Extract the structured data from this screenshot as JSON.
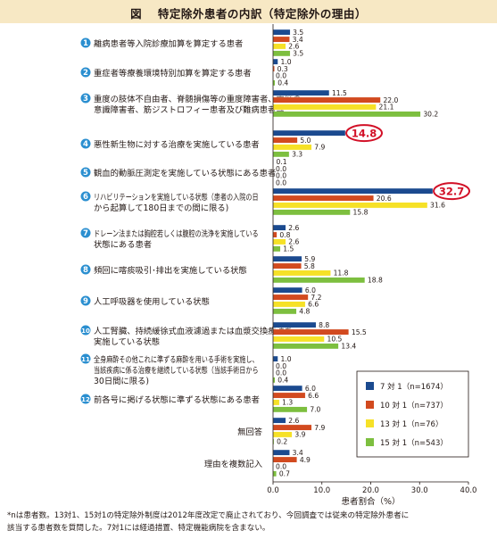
{
  "figure": {
    "title": "図　 特定除外患者の内訳（特定除外の理由）",
    "footnote_lines": [
      "*nは患者数。13対1、15対1の特定除外制度は2012年度改定で廃止されており、今回調査では従来の特定除外患者に",
      "該当する患者数を質問した。7対1には経過措置、特定機能病院を含まない。"
    ]
  },
  "chart_data": {
    "type": "bar",
    "orientation": "horizontal",
    "title": "",
    "xlabel": "患者割合（%）",
    "ylabel": "",
    "xlim": [
      0,
      40
    ],
    "xticks": [
      "0.0",
      "10.0",
      "20.0",
      "30.0",
      "40.0"
    ],
    "grid": false,
    "legend_position": "right-lower",
    "categories": [
      {
        "num": "1",
        "lines": [
          "離病患者等入院診療加算を算定する患者"
        ]
      },
      {
        "num": "2",
        "lines": [
          "重症者等療養環境特別加算を算定する患者"
        ]
      },
      {
        "num": "3",
        "lines": [
          "重度の肢体不自由者、脊髄損傷等の重度障害者、重度の",
          "意識障害者、筋ジストロフィー患者及び難病患者等"
        ]
      },
      {
        "num": "4",
        "lines": [
          "悪性新生物に対する治療を実施している患者"
        ]
      },
      {
        "num": "5",
        "lines": [
          "観血的動脈圧測定を実施している状態にある患者"
        ]
      },
      {
        "num": "6",
        "lines": [
          "リハビリテーションを実施している状態（患者の入院の日",
          "から起算して180日までの間に限る)"
        ]
      },
      {
        "num": "7",
        "lines": [
          "ドレーン法または胸腔若しくは腹腔の洗浄を実施している",
          "状態にある患者"
        ]
      },
      {
        "num": "8",
        "lines": [
          "頻回に喀痰吸引･排出を実施している状態"
        ]
      },
      {
        "num": "9",
        "lines": [
          "人工呼吸器を使用している状態"
        ]
      },
      {
        "num": "10",
        "lines": [
          "人工腎臓、持続緩徐式血液濾過または血漿交換療法を",
          "実施している状態"
        ]
      },
      {
        "num": "11",
        "lines": [
          "全身麻酔その他これに準ずる麻酔を用いる手術を実施し、",
          "当該疾病に係る治療を継続している状態（当該手術日から",
          "30日間に限る)"
        ]
      },
      {
        "num": "12",
        "lines": [
          "前各号に掲げる状態に準ずる状態にある患者"
        ]
      },
      {
        "num": "",
        "lines": [
          "無回答"
        ]
      },
      {
        "num": "",
        "lines": [
          "理由を複数記入"
        ]
      }
    ],
    "series": [
      {
        "name": "7 対 1（n=1674）",
        "color": "#1b4a8f",
        "values": [
          3.5,
          1.0,
          11.5,
          14.8,
          0.1,
          32.7,
          2.6,
          5.9,
          6.0,
          8.8,
          1.0,
          6.0,
          2.6,
          3.4
        ],
        "labels": [
          "3.5",
          "1.0",
          "11.5",
          "14.8",
          "0.1",
          "32.7",
          "2.6",
          "5.9",
          "6.0",
          "8.8",
          "1.0",
          "6.0",
          "2.6",
          "3.4"
        ]
      },
      {
        "name": "10 対 1（n=737）",
        "color": "#d24a1f",
        "values": [
          3.4,
          0.3,
          22.0,
          5.0,
          0.0,
          20.6,
          0.8,
          5.8,
          7.2,
          15.5,
          0.0,
          6.6,
          7.9,
          4.9
        ],
        "labels": [
          "3.4",
          "0.3",
          "22.0",
          "5.0",
          "0.0",
          "20.6",
          "0.8",
          "5.8",
          "7.2",
          "15.5",
          "0.0",
          "6.6",
          "7.9",
          "4.9"
        ]
      },
      {
        "name": "13 対 1（n=76）",
        "color": "#f6e127",
        "values": [
          2.6,
          0.0,
          21.1,
          7.9,
          0.0,
          31.6,
          2.6,
          11.8,
          6.6,
          10.5,
          0.0,
          1.3,
          3.9,
          0.0
        ],
        "labels": [
          "2.6",
          "0.0",
          "21.1",
          "7.9",
          "0.0",
          "31.6",
          "2.6",
          "11.8",
          "6.6",
          "10.5",
          "0.0",
          "1.3",
          "3.9",
          "0.0"
        ]
      },
      {
        "name": "15 対 1（n=543）",
        "color": "#7dbf3f",
        "values": [
          3.5,
          0.4,
          30.2,
          3.3,
          0.0,
          15.8,
          1.5,
          18.8,
          4.8,
          13.4,
          0.4,
          7.0,
          0.2,
          0.7
        ],
        "labels": [
          "3.5",
          "0.4",
          "30.2",
          "3.3",
          "0.0",
          "15.8",
          "1.5",
          "18.8",
          "4.8",
          "13.4",
          "0.4",
          "7.0",
          "0.2",
          "0.7"
        ]
      }
    ],
    "highlights": [
      {
        "category_index": 3,
        "series_index": 0,
        "label": "14.8"
      },
      {
        "category_index": 5,
        "series_index": 0,
        "label": "32.7"
      }
    ]
  }
}
